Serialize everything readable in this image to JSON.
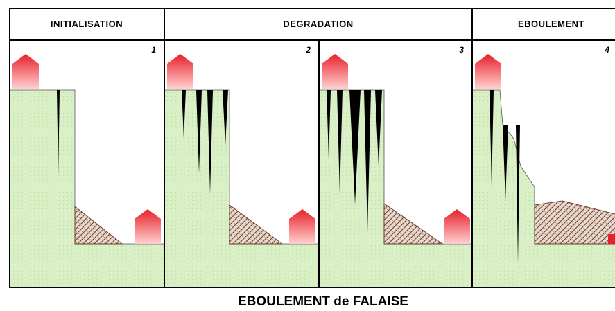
{
  "headers": [
    "INITIALISATION",
    "DEGRADATION",
    "EBOULEMENT"
  ],
  "panels": [
    {
      "number": "1"
    },
    {
      "number": "2"
    },
    {
      "number": "3"
    },
    {
      "number": "4"
    }
  ],
  "caption": "EBOULEMENT de FALAISE"
}
